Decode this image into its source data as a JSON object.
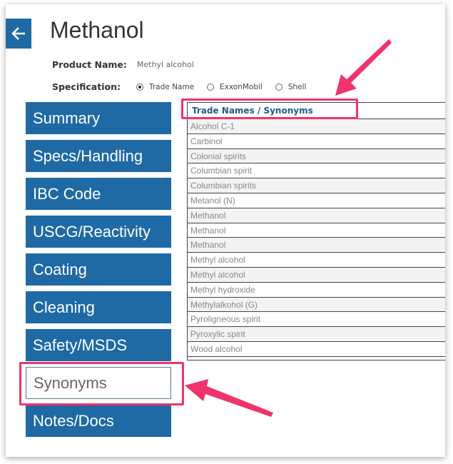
{
  "header": {
    "title": "Methanol",
    "back_icon": "arrow-left-icon"
  },
  "product": {
    "label": "Product Name:",
    "value": "Methyl alcohol"
  },
  "specification": {
    "label": "Specification:",
    "options": [
      "Trade Name",
      "ExxonMobil",
      "Shell"
    ],
    "selected": "Trade Name"
  },
  "nav": {
    "items": [
      {
        "label": "Summary"
      },
      {
        "label": "Specs/Handling"
      },
      {
        "label": "IBC Code"
      },
      {
        "label": "USCG/Reactivity"
      },
      {
        "label": "Coating"
      },
      {
        "label": "Cleaning"
      },
      {
        "label": "Safety/MSDS"
      },
      {
        "label": "Synonyms"
      },
      {
        "label": "Notes/Docs"
      }
    ],
    "selected": "Synonyms"
  },
  "table": {
    "header": "Trade Names / Synonyms",
    "rows": [
      "Alcohol C-1",
      "Carbinol",
      "Colonial spirits",
      "Columbian spirit",
      "Columbian spirits",
      "Metanol (N)",
      "Methanol",
      "Methanol",
      "Methanol",
      "Methyl alcohol",
      "Methyl alcohol",
      "Methyl hydroxide",
      "Methylalkohol (G)",
      "Pyroligneous spirit",
      "Pyroxylic spirit",
      "Wood alcohol"
    ]
  },
  "colors": {
    "accent": "#1f6aa5",
    "annotation": "#f0336a",
    "header_text": "#1f5a8a"
  }
}
